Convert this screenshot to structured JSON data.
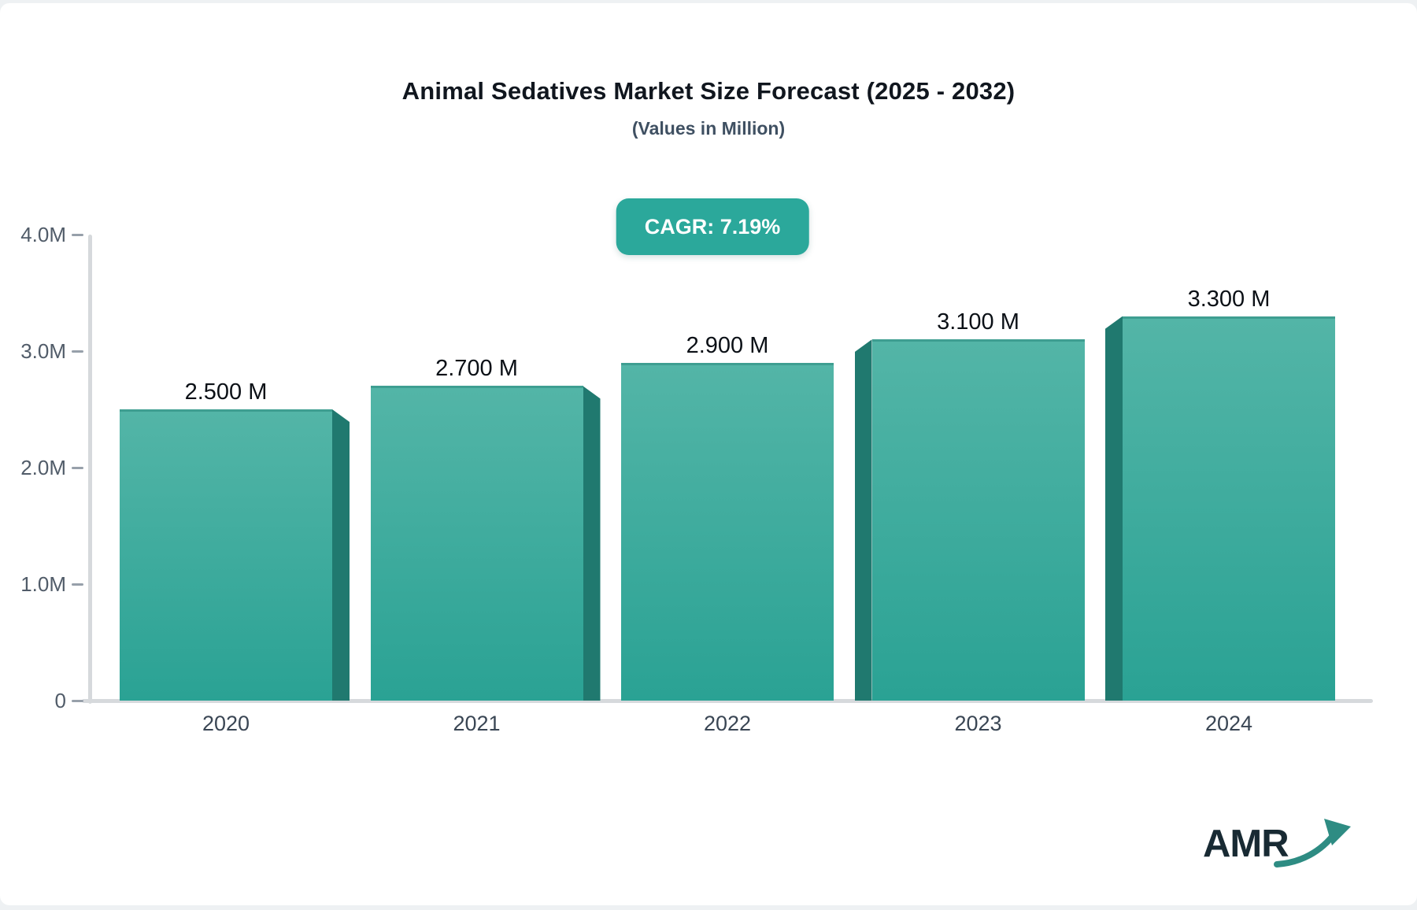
{
  "header": {
    "title": "Animal Sedatives Market Size Forecast (2025 - 2032)",
    "subtitle": "(Values in Million)"
  },
  "badge": {
    "text": "CAGR: 7.19%",
    "bg_color": "#2BA89B",
    "text_color": "#FFFFFF"
  },
  "chart_data": {
    "type": "bar",
    "title": "Animal Sedatives Market Size Forecast (2025 - 2032)",
    "subtitle": "(Values in Million)",
    "cagr": "7.19%",
    "categories": [
      "2020",
      "2021",
      "2022",
      "2023",
      "2024"
    ],
    "values": [
      2.5,
      2.7,
      2.9,
      3.1,
      3.3
    ],
    "value_labels": [
      "2.500 M",
      "2.700 M",
      "2.900 M",
      "3.100 M",
      "3.300 M"
    ],
    "xlabel": "",
    "ylabel": "",
    "ylim": [
      0,
      4
    ],
    "yticks": [
      0,
      1,
      2,
      3,
      4
    ],
    "ytick_labels": [
      "0",
      "1.0M",
      "2.0M",
      "3.0M",
      "4.0M"
    ],
    "grid": false,
    "legend": false,
    "colors": {
      "bar_top": "#53B5A7",
      "bar_bottom": "#2AA294",
      "bar_top_edge": "#3E9E91",
      "bar_side": "#20796F",
      "axis_line": "#D6D9DC",
      "tick_dash": "#97A0AA",
      "ytick_text": "#515C69",
      "xtick_text": "#3A4654",
      "value_text": "#0B1016"
    }
  },
  "logo": {
    "text": "AMR",
    "text_color": "#182A33",
    "arrow_color": "#2E8C83"
  }
}
